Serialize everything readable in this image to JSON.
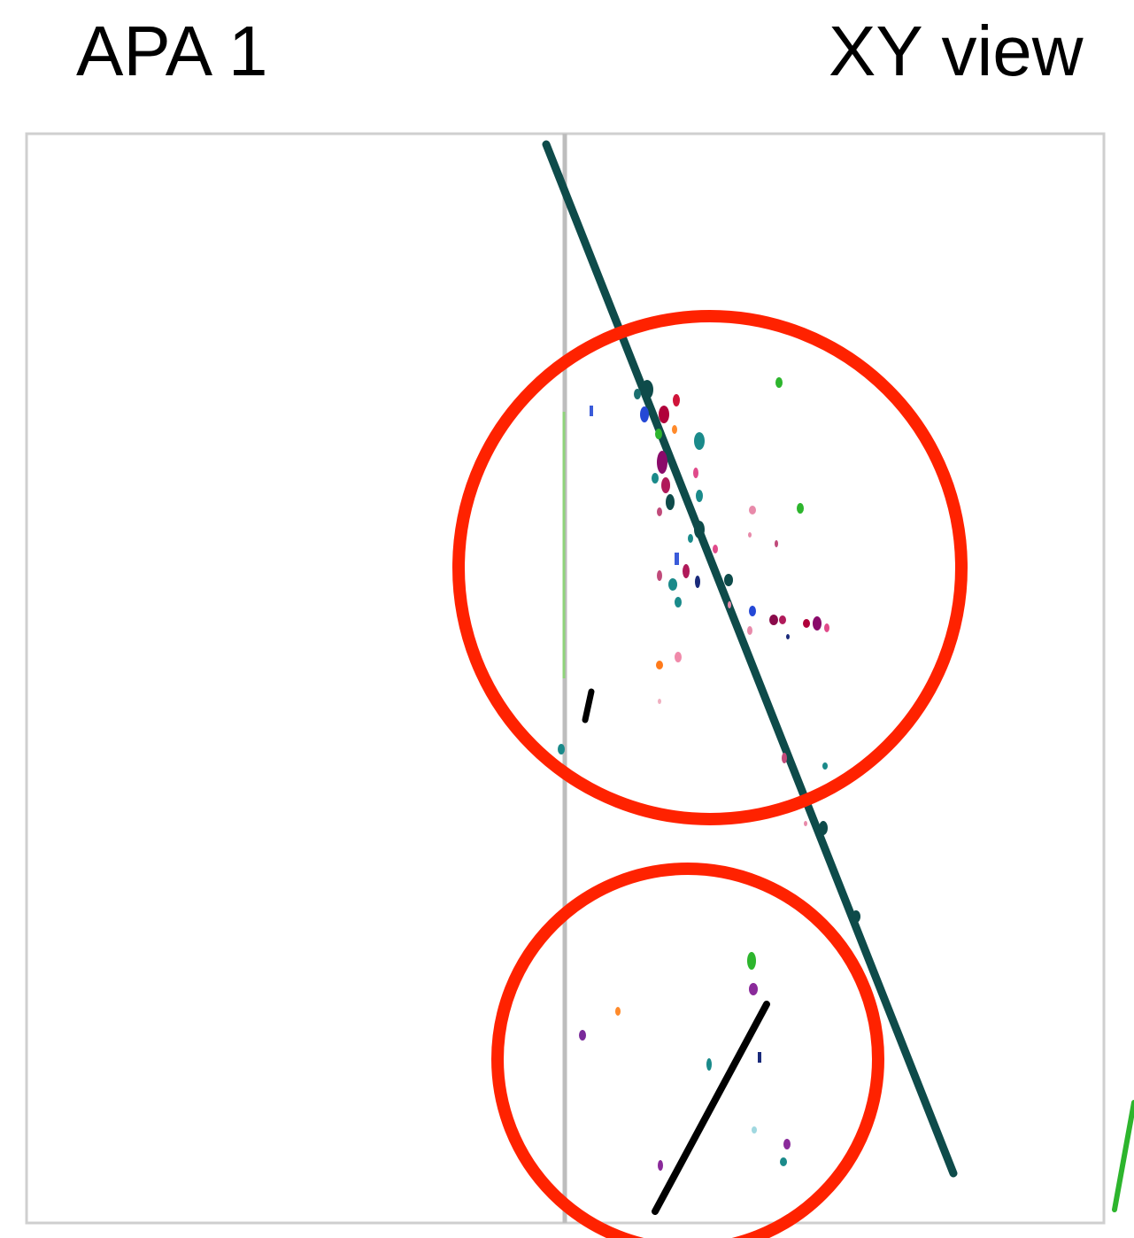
{
  "header": {
    "left_title": "APA 1",
    "right_title": "XY view"
  },
  "colors": {
    "frame": "#cfcfcf",
    "divider": "#bdbdbd",
    "main_track": "#0e4b4a",
    "short_track": "#000000",
    "edge_track": "#2db52d",
    "annotation_circle": "#ff2200",
    "axis_x_start": "#ff6a6a",
    "axis_x_end": "#ffb347",
    "axis_y": "#8fd37a"
  },
  "markers": {
    "circle_count": 2
  }
}
